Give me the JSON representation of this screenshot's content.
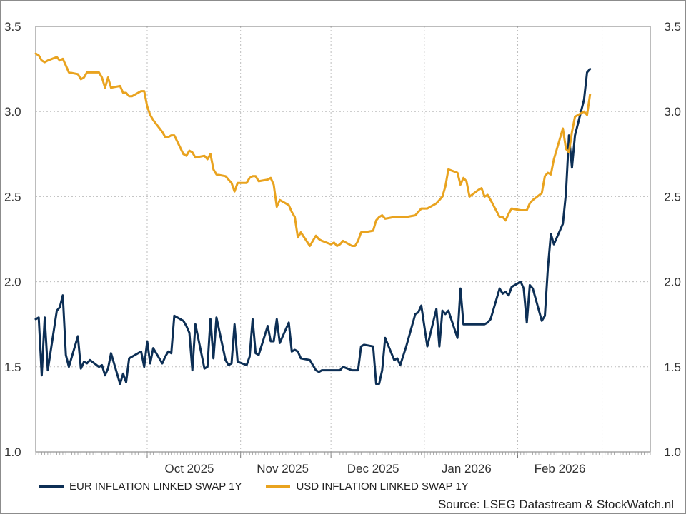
{
  "chart_data": {
    "type": "line",
    "title": "",
    "xlabel": "",
    "ylabel": "",
    "ylim": [
      1.0,
      3.5
    ],
    "yticks": [
      1.0,
      1.5,
      2.0,
      2.5,
      3.0,
      3.5
    ],
    "ytick_labels": [
      "1.0",
      "1.5",
      "2.0",
      "2.5",
      "3.0",
      "3.5"
    ],
    "xlim": [
      "2025-08-25",
      "2026-03-17"
    ],
    "month_starts": [
      "2025-10-01",
      "2025-11-01",
      "2025-12-01",
      "2026-01-01",
      "2026-02-01",
      "2026-03-01"
    ],
    "month_labels": [
      {
        "date": "2025-10-15",
        "label": "Oct 2025"
      },
      {
        "date": "2025-11-15",
        "label": "Nov 2025"
      },
      {
        "date": "2025-12-15",
        "label": "Dec 2025"
      },
      {
        "date": "2026-01-15",
        "label": "Jan 2026"
      },
      {
        "date": "2026-02-15",
        "label": "Feb 2026"
      }
    ],
    "grid": true,
    "dual_y_axis": true,
    "legend_position": "bottom-left",
    "source": "Source: LSEG Datastream & StockWatch.nl",
    "series": [
      {
        "name": "EUR INFLATION LINKED SWAP 1Y",
        "color": "#0d2f55",
        "points": [
          [
            "2025-08-25",
            1.78
          ],
          [
            "2025-08-26",
            1.79
          ],
          [
            "2025-08-27",
            1.45
          ],
          [
            "2025-08-28",
            1.79
          ],
          [
            "2025-08-29",
            1.48
          ],
          [
            "2025-09-01",
            1.83
          ],
          [
            "2025-09-02",
            1.85
          ],
          [
            "2025-09-03",
            1.92
          ],
          [
            "2025-09-04",
            1.57
          ],
          [
            "2025-09-05",
            1.5
          ],
          [
            "2025-09-08",
            1.68
          ],
          [
            "2025-09-09",
            1.49
          ],
          [
            "2025-09-10",
            1.53
          ],
          [
            "2025-09-11",
            1.52
          ],
          [
            "2025-09-12",
            1.54
          ],
          [
            "2025-09-15",
            1.5
          ],
          [
            "2025-09-16",
            1.51
          ],
          [
            "2025-09-17",
            1.45
          ],
          [
            "2025-09-18",
            1.49
          ],
          [
            "2025-09-19",
            1.58
          ],
          [
            "2025-09-22",
            1.4
          ],
          [
            "2025-09-23",
            1.46
          ],
          [
            "2025-09-24",
            1.41
          ],
          [
            "2025-09-25",
            1.55
          ],
          [
            "2025-09-26",
            1.56
          ],
          [
            "2025-09-29",
            1.59
          ],
          [
            "2025-09-30",
            1.5
          ],
          [
            "2025-10-01",
            1.65
          ],
          [
            "2025-10-02",
            1.52
          ],
          [
            "2025-10-03",
            1.61
          ],
          [
            "2025-10-06",
            1.52
          ],
          [
            "2025-10-07",
            1.56
          ],
          [
            "2025-10-08",
            1.59
          ],
          [
            "2025-10-09",
            1.58
          ],
          [
            "2025-10-10",
            1.8
          ],
          [
            "2025-10-13",
            1.77
          ],
          [
            "2025-10-14",
            1.74
          ],
          [
            "2025-10-15",
            1.7
          ],
          [
            "2025-10-16",
            1.48
          ],
          [
            "2025-10-17",
            1.75
          ],
          [
            "2025-10-20",
            1.49
          ],
          [
            "2025-10-21",
            1.5
          ],
          [
            "2025-10-22",
            1.78
          ],
          [
            "2025-10-23",
            1.55
          ],
          [
            "2025-10-24",
            1.79
          ],
          [
            "2025-10-27",
            1.54
          ],
          [
            "2025-10-28",
            1.51
          ],
          [
            "2025-10-29",
            1.52
          ],
          [
            "2025-10-30",
            1.75
          ],
          [
            "2025-10-31",
            1.53
          ],
          [
            "2025-11-03",
            1.51
          ],
          [
            "2025-11-04",
            1.56
          ],
          [
            "2025-11-05",
            1.78
          ],
          [
            "2025-11-06",
            1.58
          ],
          [
            "2025-11-07",
            1.57
          ],
          [
            "2025-11-10",
            1.74
          ],
          [
            "2025-11-11",
            1.65
          ],
          [
            "2025-11-12",
            1.65
          ],
          [
            "2025-11-13",
            1.78
          ],
          [
            "2025-11-14",
            1.64
          ],
          [
            "2025-11-17",
            1.76
          ],
          [
            "2025-11-18",
            1.59
          ],
          [
            "2025-11-19",
            1.6
          ],
          [
            "2025-11-20",
            1.59
          ],
          [
            "2025-11-21",
            1.55
          ],
          [
            "2025-11-24",
            1.54
          ],
          [
            "2025-11-25",
            1.51
          ],
          [
            "2025-11-26",
            1.48
          ],
          [
            "2025-11-27",
            1.47
          ],
          [
            "2025-11-28",
            1.48
          ],
          [
            "2025-12-01",
            1.48
          ],
          [
            "2025-12-02",
            1.48
          ],
          [
            "2025-12-03",
            1.48
          ],
          [
            "2025-12-04",
            1.48
          ],
          [
            "2025-12-05",
            1.5
          ],
          [
            "2025-12-08",
            1.48
          ],
          [
            "2025-12-09",
            1.48
          ],
          [
            "2025-12-10",
            1.48
          ],
          [
            "2025-12-11",
            1.62
          ],
          [
            "2025-12-12",
            1.63
          ],
          [
            "2025-12-15",
            1.62
          ],
          [
            "2025-12-16",
            1.4
          ],
          [
            "2025-12-17",
            1.4
          ],
          [
            "2025-12-18",
            1.48
          ],
          [
            "2025-12-19",
            1.67
          ],
          [
            "2025-12-22",
            1.54
          ],
          [
            "2025-12-23",
            1.55
          ],
          [
            "2025-12-24",
            1.51
          ],
          [
            "2025-12-26",
            1.62
          ],
          [
            "2025-12-29",
            1.81
          ],
          [
            "2025-12-30",
            1.82
          ],
          [
            "2025-12-31",
            1.86
          ],
          [
            "2026-01-02",
            1.62
          ],
          [
            "2026-01-05",
            1.84
          ],
          [
            "2026-01-06",
            1.62
          ],
          [
            "2026-01-07",
            1.83
          ],
          [
            "2026-01-08",
            1.81
          ],
          [
            "2026-01-09",
            1.83
          ],
          [
            "2026-01-12",
            1.67
          ],
          [
            "2026-01-13",
            1.96
          ],
          [
            "2026-01-14",
            1.75
          ],
          [
            "2026-01-15",
            1.75
          ],
          [
            "2026-01-16",
            1.75
          ],
          [
            "2026-01-19",
            1.75
          ],
          [
            "2026-01-20",
            1.75
          ],
          [
            "2026-01-21",
            1.75
          ],
          [
            "2026-01-22",
            1.76
          ],
          [
            "2026-01-23",
            1.78
          ],
          [
            "2026-01-26",
            1.96
          ],
          [
            "2026-01-27",
            1.93
          ],
          [
            "2026-01-28",
            1.94
          ],
          [
            "2026-01-29",
            1.92
          ],
          [
            "2026-01-30",
            1.97
          ],
          [
            "2026-02-02",
            2.0
          ],
          [
            "2026-02-03",
            1.96
          ],
          [
            "2026-02-04",
            1.76
          ],
          [
            "2026-02-05",
            1.98
          ],
          [
            "2026-02-06",
            1.96
          ],
          [
            "2026-02-09",
            1.77
          ],
          [
            "2026-02-10",
            1.8
          ],
          [
            "2026-02-11",
            2.08
          ],
          [
            "2026-02-12",
            2.28
          ],
          [
            "2026-02-13",
            2.22
          ],
          [
            "2026-02-16",
            2.34
          ],
          [
            "2026-02-17",
            2.52
          ],
          [
            "2026-02-18",
            2.86
          ],
          [
            "2026-02-19",
            2.67
          ],
          [
            "2026-02-20",
            2.86
          ],
          [
            "2026-02-23",
            3.07
          ],
          [
            "2026-02-24",
            3.23
          ],
          [
            "2026-02-25",
            3.25
          ]
        ]
      },
      {
        "name": "USD INFLATION LINKED SWAP 1Y",
        "color": "#e9a31f",
        "points": [
          [
            "2025-08-25",
            3.34
          ],
          [
            "2025-08-26",
            3.33
          ],
          [
            "2025-08-27",
            3.3
          ],
          [
            "2025-08-28",
            3.29
          ],
          [
            "2025-08-29",
            3.3
          ],
          [
            "2025-09-01",
            3.32
          ],
          [
            "2025-09-02",
            3.3
          ],
          [
            "2025-09-03",
            3.31
          ],
          [
            "2025-09-04",
            3.27
          ],
          [
            "2025-09-05",
            3.23
          ],
          [
            "2025-09-08",
            3.22
          ],
          [
            "2025-09-09",
            3.19
          ],
          [
            "2025-09-10",
            3.2
          ],
          [
            "2025-09-11",
            3.23
          ],
          [
            "2025-09-12",
            3.23
          ],
          [
            "2025-09-15",
            3.23
          ],
          [
            "2025-09-16",
            3.2
          ],
          [
            "2025-09-17",
            3.14
          ],
          [
            "2025-09-18",
            3.2
          ],
          [
            "2025-09-19",
            3.14
          ],
          [
            "2025-09-22",
            3.15
          ],
          [
            "2025-09-23",
            3.11
          ],
          [
            "2025-09-24",
            3.11
          ],
          [
            "2025-09-25",
            3.09
          ],
          [
            "2025-09-26",
            3.09
          ],
          [
            "2025-09-29",
            3.12
          ],
          [
            "2025-09-30",
            3.12
          ],
          [
            "2025-10-01",
            3.03
          ],
          [
            "2025-10-02",
            2.98
          ],
          [
            "2025-10-03",
            2.95
          ],
          [
            "2025-10-06",
            2.88
          ],
          [
            "2025-10-07",
            2.85
          ],
          [
            "2025-10-08",
            2.85
          ],
          [
            "2025-10-09",
            2.86
          ],
          [
            "2025-10-10",
            2.86
          ],
          [
            "2025-10-13",
            2.75
          ],
          [
            "2025-10-14",
            2.74
          ],
          [
            "2025-10-15",
            2.77
          ],
          [
            "2025-10-16",
            2.76
          ],
          [
            "2025-10-17",
            2.73
          ],
          [
            "2025-10-20",
            2.74
          ],
          [
            "2025-10-21",
            2.72
          ],
          [
            "2025-10-22",
            2.75
          ],
          [
            "2025-10-23",
            2.66
          ],
          [
            "2025-10-24",
            2.63
          ],
          [
            "2025-10-27",
            2.62
          ],
          [
            "2025-10-28",
            2.6
          ],
          [
            "2025-10-29",
            2.58
          ],
          [
            "2025-10-30",
            2.53
          ],
          [
            "2025-10-31",
            2.58
          ],
          [
            "2025-11-03",
            2.58
          ],
          [
            "2025-11-04",
            2.61
          ],
          [
            "2025-11-05",
            2.62
          ],
          [
            "2025-11-06",
            2.62
          ],
          [
            "2025-11-07",
            2.59
          ],
          [
            "2025-11-10",
            2.6
          ],
          [
            "2025-11-11",
            2.61
          ],
          [
            "2025-11-12",
            2.57
          ],
          [
            "2025-11-13",
            2.44
          ],
          [
            "2025-11-14",
            2.48
          ],
          [
            "2025-11-17",
            2.45
          ],
          [
            "2025-11-18",
            2.41
          ],
          [
            "2025-11-19",
            2.38
          ],
          [
            "2025-11-20",
            2.26
          ],
          [
            "2025-11-21",
            2.29
          ],
          [
            "2025-11-24",
            2.21
          ],
          [
            "2025-11-25",
            2.24
          ],
          [
            "2025-11-26",
            2.27
          ],
          [
            "2025-11-27",
            2.25
          ],
          [
            "2025-11-28",
            2.24
          ],
          [
            "2025-12-01",
            2.22
          ],
          [
            "2025-12-02",
            2.23
          ],
          [
            "2025-12-03",
            2.21
          ],
          [
            "2025-12-04",
            2.22
          ],
          [
            "2025-12-05",
            2.24
          ],
          [
            "2025-12-08",
            2.21
          ],
          [
            "2025-12-09",
            2.21
          ],
          [
            "2025-12-10",
            2.24
          ],
          [
            "2025-12-11",
            2.29
          ],
          [
            "2025-12-12",
            2.29
          ],
          [
            "2025-12-15",
            2.3
          ],
          [
            "2025-12-16",
            2.36
          ],
          [
            "2025-12-17",
            2.38
          ],
          [
            "2025-12-18",
            2.39
          ],
          [
            "2025-12-19",
            2.37
          ],
          [
            "2025-12-22",
            2.38
          ],
          [
            "2025-12-23",
            2.38
          ],
          [
            "2025-12-24",
            2.38
          ],
          [
            "2025-12-26",
            2.38
          ],
          [
            "2025-12-29",
            2.39
          ],
          [
            "2025-12-30",
            2.41
          ],
          [
            "2025-12-31",
            2.43
          ],
          [
            "2026-01-02",
            2.43
          ],
          [
            "2026-01-05",
            2.46
          ],
          [
            "2026-01-06",
            2.48
          ],
          [
            "2026-01-07",
            2.5
          ],
          [
            "2026-01-08",
            2.56
          ],
          [
            "2026-01-09",
            2.66
          ],
          [
            "2026-01-12",
            2.64
          ],
          [
            "2026-01-13",
            2.57
          ],
          [
            "2026-01-14",
            2.61
          ],
          [
            "2026-01-15",
            2.59
          ],
          [
            "2026-01-16",
            2.5
          ],
          [
            "2026-01-19",
            2.54
          ],
          [
            "2026-01-20",
            2.55
          ],
          [
            "2026-01-21",
            2.5
          ],
          [
            "2026-01-22",
            2.51
          ],
          [
            "2026-01-23",
            2.48
          ],
          [
            "2026-01-26",
            2.38
          ],
          [
            "2026-01-27",
            2.38
          ],
          [
            "2026-01-28",
            2.36
          ],
          [
            "2026-01-29",
            2.4
          ],
          [
            "2026-01-30",
            2.43
          ],
          [
            "2026-02-02",
            2.42
          ],
          [
            "2026-02-03",
            2.42
          ],
          [
            "2026-02-04",
            2.42
          ],
          [
            "2026-02-05",
            2.46
          ],
          [
            "2026-02-06",
            2.48
          ],
          [
            "2026-02-09",
            2.52
          ],
          [
            "2026-02-10",
            2.62
          ],
          [
            "2026-02-11",
            2.64
          ],
          [
            "2026-02-12",
            2.63
          ],
          [
            "2026-02-13",
            2.72
          ],
          [
            "2026-02-16",
            2.9
          ],
          [
            "2026-02-17",
            2.78
          ],
          [
            "2026-02-18",
            2.76
          ],
          [
            "2026-02-19",
            2.88
          ],
          [
            "2026-02-20",
            2.97
          ],
          [
            "2026-02-23",
            3.0
          ],
          [
            "2026-02-24",
            2.98
          ],
          [
            "2026-02-25",
            3.1
          ]
        ]
      }
    ]
  }
}
